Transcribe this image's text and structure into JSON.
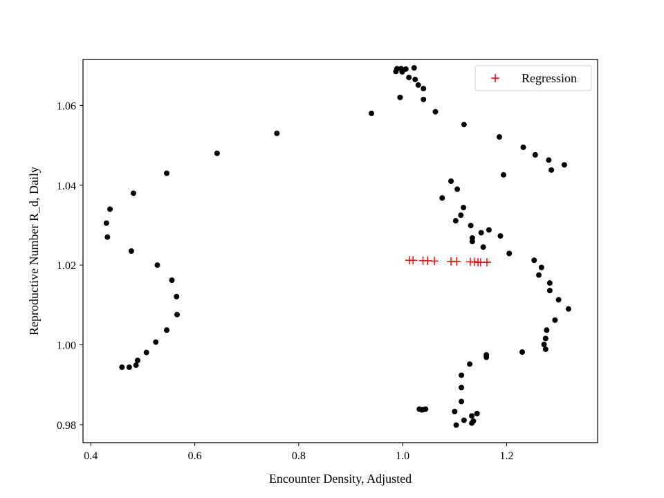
{
  "chart_data": {
    "type": "scatter",
    "title": "",
    "xlabel": "Encounter Density, Adjusted",
    "ylabel": "Reproductive Number R_d, Daily",
    "xlim": [
      0.385,
      1.375
    ],
    "ylim": [
      0.9755,
      1.0715
    ],
    "xticks": [
      0.4,
      0.6,
      0.8,
      1.0,
      1.2
    ],
    "xtick_labels": [
      "0.4",
      "0.6",
      "0.8",
      "1.0",
      "1.2"
    ],
    "yticks": [
      0.98,
      1.0,
      1.02,
      1.04,
      1.06
    ],
    "ytick_labels": [
      "0.98",
      "1.00",
      "1.02",
      "1.04",
      "1.06"
    ],
    "grid": false,
    "legend_position": "upper right",
    "series": [
      {
        "name": "",
        "marker": "circle",
        "color": "#000000",
        "points": [
          [
            0.43,
            1.0305
          ],
          [
            0.437,
            1.034
          ],
          [
            0.432,
            1.027
          ],
          [
            0.482,
            1.038
          ],
          [
            0.478,
            1.0235
          ],
          [
            0.528,
            1.02
          ],
          [
            0.546,
            1.043
          ],
          [
            0.556,
            1.0162
          ],
          [
            0.565,
            1.0121
          ],
          [
            0.566,
            1.0076
          ],
          [
            0.546,
            1.0037
          ],
          [
            0.525,
            1.0007
          ],
          [
            0.507,
            0.9981
          ],
          [
            0.49,
            0.9961
          ],
          [
            0.487,
            0.9949
          ],
          [
            0.474,
            0.9944
          ],
          [
            0.46,
            0.9944
          ],
          [
            0.643,
            1.048
          ],
          [
            0.758,
            1.053
          ],
          [
            0.94,
            1.058
          ],
          [
            0.987,
            1.0685
          ],
          [
            0.989,
            1.0692
          ],
          [
            0.997,
            1.0692
          ],
          [
            0.999,
            1.0684
          ],
          [
            1.006,
            1.0691
          ],
          [
            1.022,
            1.0694
          ],
          [
            1.012,
            1.067
          ],
          [
            1.024,
            1.0665
          ],
          [
            1.03,
            1.0651
          ],
          [
            1.04,
            1.0642
          ],
          [
            0.995,
            1.062
          ],
          [
            1.04,
            1.0615
          ],
          [
            1.063,
            1.0584
          ],
          [
            1.118,
            1.0552
          ],
          [
            1.186,
            1.0521
          ],
          [
            1.232,
            1.0495
          ],
          [
            1.255,
            1.0476
          ],
          [
            1.281,
            1.0463
          ],
          [
            1.311,
            1.0451
          ],
          [
            1.286,
            1.0438
          ],
          [
            1.194,
            1.0426
          ],
          [
            1.093,
            1.041
          ],
          [
            1.105,
            1.039
          ],
          [
            1.076,
            1.0368
          ],
          [
            1.117,
            1.0344
          ],
          [
            1.112,
            1.0325
          ],
          [
            1.102,
            1.0311
          ],
          [
            1.131,
            1.0299
          ],
          [
            1.166,
            1.0288
          ],
          [
            1.151,
            1.0281
          ],
          [
            1.188,
            1.0273
          ],
          [
            1.134,
            1.0268
          ],
          [
            1.134,
            1.0259
          ],
          [
            1.155,
            1.0245
          ],
          [
            1.205,
            1.0229
          ],
          [
            1.253,
            1.0212
          ],
          [
            1.267,
            1.0194
          ],
          [
            1.262,
            1.0175
          ],
          [
            1.283,
            1.0155
          ],
          [
            1.283,
            1.0136
          ],
          [
            1.3,
            1.0113
          ],
          [
            1.319,
            1.009
          ],
          [
            1.293,
            1.0062
          ],
          [
            1.277,
            1.0037
          ],
          [
            1.275,
            1.0016
          ],
          [
            1.272,
            1.0001
          ],
          [
            1.275,
            0.9989
          ],
          [
            1.23,
            0.9982
          ],
          [
            1.161,
            0.9975
          ],
          [
            1.161,
            0.9969
          ],
          [
            1.129,
            0.9952
          ],
          [
            1.113,
            0.9924
          ],
          [
            1.113,
            0.9893
          ],
          [
            1.113,
            0.9858
          ],
          [
            1.1,
            0.9833
          ],
          [
            1.143,
            0.9828
          ],
          [
            1.133,
            0.9822
          ],
          [
            1.118,
            0.9811
          ],
          [
            1.136,
            0.9809
          ],
          [
            1.133,
            0.9804
          ],
          [
            1.103,
            0.9799
          ],
          [
            1.032,
            0.9839
          ],
          [
            1.037,
            0.9837
          ],
          [
            1.04,
            0.9838
          ],
          [
            1.044,
            0.9839
          ]
        ]
      },
      {
        "name": "Regression",
        "marker": "plus",
        "color": "#ff0000",
        "points": [
          [
            1.013,
            1.0212
          ],
          [
            1.02,
            1.0212
          ],
          [
            1.039,
            1.0211
          ],
          [
            1.048,
            1.0211
          ],
          [
            1.061,
            1.021
          ],
          [
            1.093,
            1.0209
          ],
          [
            1.104,
            1.0209
          ],
          [
            1.13,
            1.0208
          ],
          [
            1.138,
            1.0208
          ],
          [
            1.145,
            1.0207
          ],
          [
            1.15,
            1.0207
          ],
          [
            1.162,
            1.0207
          ]
        ]
      }
    ]
  }
}
